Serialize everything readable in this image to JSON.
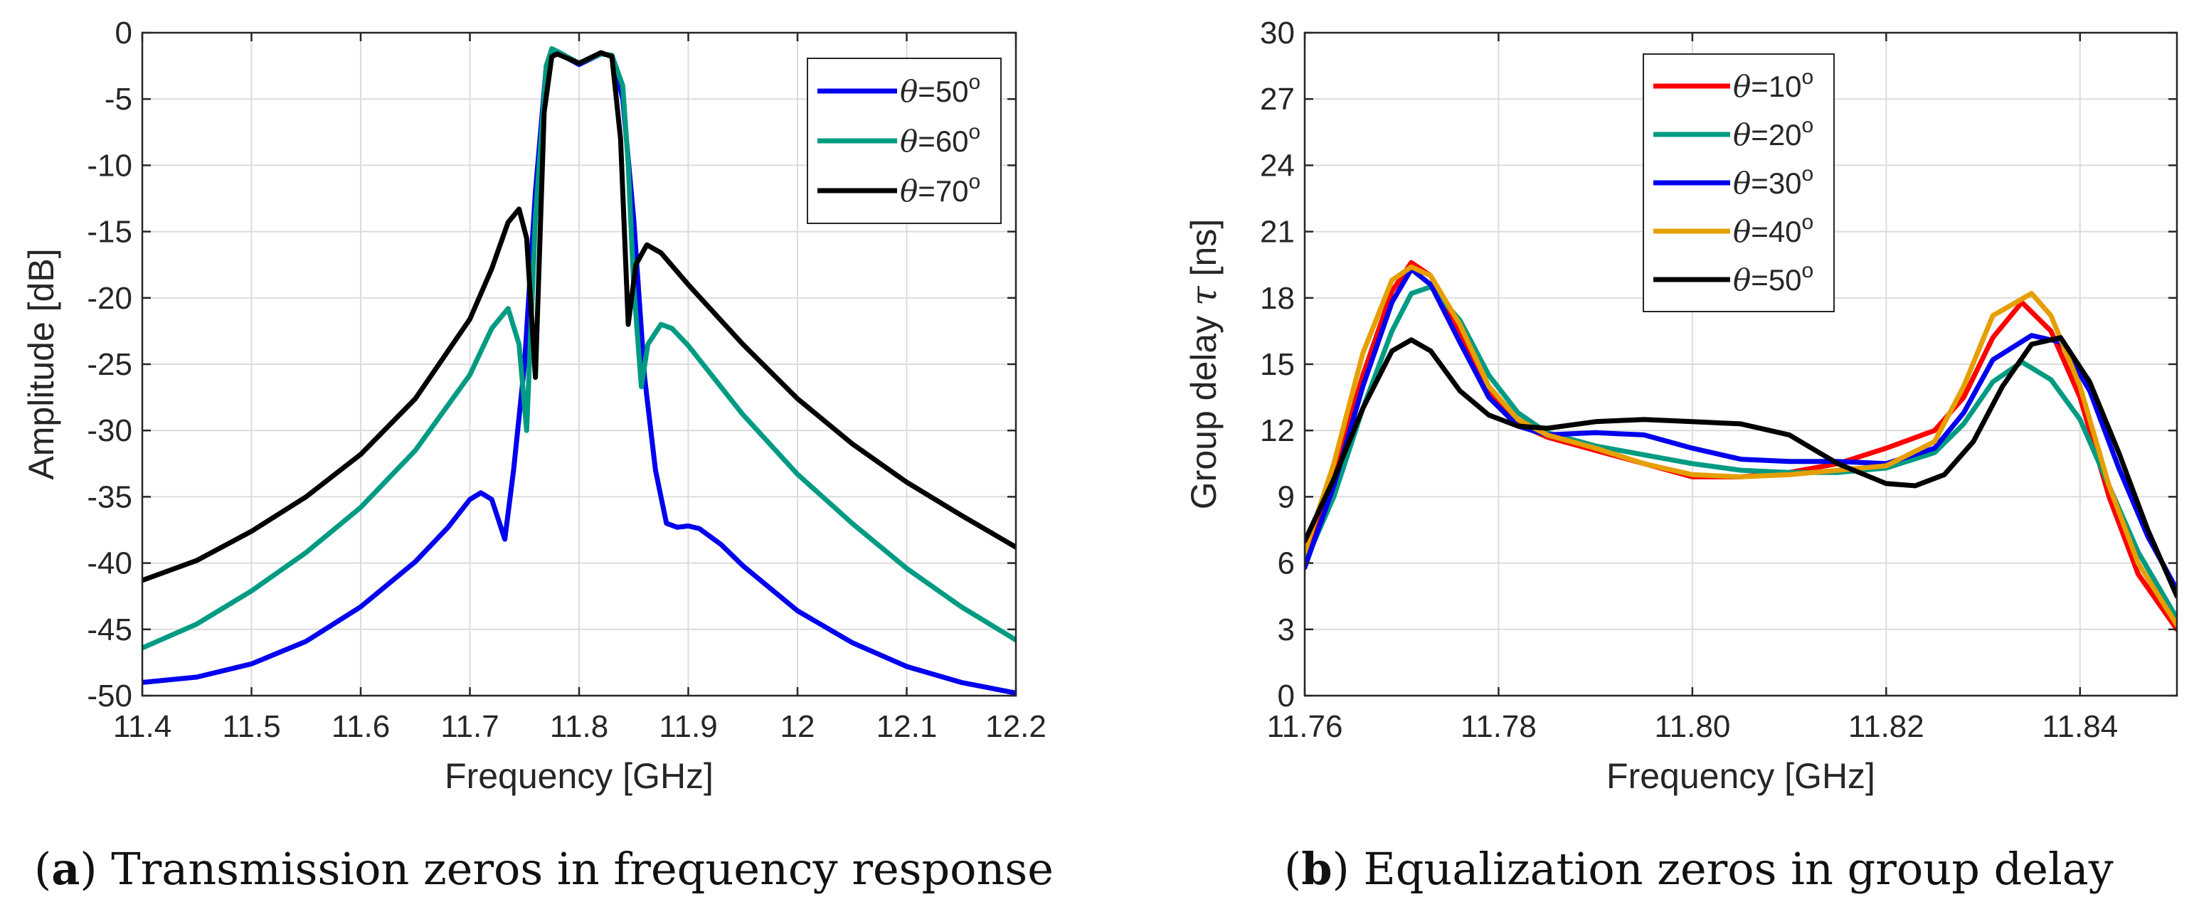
{
  "chart_data": [
    {
      "type": "line",
      "panel": "a",
      "caption_letter": "a",
      "caption_text": "Transmission zeros in frequency response",
      "xlabel": "Frequency [GHz]",
      "ylabel": "Amplitude [dB]",
      "xlim": [
        11.4,
        12.2
      ],
      "ylim": [
        -50,
        0
      ],
      "xticks": [
        11.4,
        11.5,
        11.6,
        11.7,
        11.8,
        11.9,
        12.0,
        12.1,
        12.2
      ],
      "xtick_labels": [
        "11.4",
        "11.5",
        "11.6",
        "11.7",
        "11.8",
        "11.9",
        "12",
        "12.1",
        "12.2"
      ],
      "yticks": [
        0,
        -5,
        -10,
        -15,
        -20,
        -25,
        -30,
        -35,
        -40,
        -45,
        -50
      ],
      "ytick_labels": [
        "0",
        "-5",
        "-10",
        "-15",
        "-20",
        "-25",
        "-30",
        "-35",
        "-40",
        "-45",
        "-50"
      ],
      "grid": true,
      "legend_position": "top-right",
      "series": [
        {
          "name": "θ=50°",
          "legend_symbol": "θ",
          "legend_text": "=50",
          "legend_sup": "o",
          "color": "#0000ee",
          "points": [
            [
              11.4,
              -49
            ],
            [
              11.45,
              -48.6
            ],
            [
              11.5,
              -47.6
            ],
            [
              11.55,
              -45.9
            ],
            [
              11.6,
              -43.3
            ],
            [
              11.65,
              -39.9
            ],
            [
              11.68,
              -37.3
            ],
            [
              11.7,
              -35.2
            ],
            [
              11.71,
              -34.7
            ],
            [
              11.72,
              -35.2
            ],
            [
              11.728,
              -37.2
            ],
            [
              11.732,
              -38.2
            ],
            [
              11.74,
              -33
            ],
            [
              11.75,
              -25
            ],
            [
              11.76,
              -12
            ],
            [
              11.77,
              -2.5
            ],
            [
              11.775,
              -1.3
            ],
            [
              11.78,
              -1.5
            ],
            [
              11.8,
              -2.4
            ],
            [
              11.82,
              -1.6
            ],
            [
              11.83,
              -1.7
            ],
            [
              11.84,
              -5
            ],
            [
              11.85,
              -14
            ],
            [
              11.86,
              -26
            ],
            [
              11.87,
              -33
            ],
            [
              11.88,
              -37
            ],
            [
              11.89,
              -37.3
            ],
            [
              11.9,
              -37.2
            ],
            [
              11.91,
              -37.4
            ],
            [
              11.93,
              -38.6
            ],
            [
              11.95,
              -40.2
            ],
            [
              12.0,
              -43.6
            ],
            [
              12.05,
              -46
            ],
            [
              12.1,
              -47.8
            ],
            [
              12.15,
              -49
            ],
            [
              12.2,
              -49.8
            ]
          ]
        },
        {
          "name": "θ=60°",
          "legend_symbol": "θ",
          "legend_text": "=60",
          "legend_sup": "o",
          "color": "#009b82",
          "points": [
            [
              11.4,
              -46.4
            ],
            [
              11.45,
              -44.6
            ],
            [
              11.5,
              -42.1
            ],
            [
              11.55,
              -39.2
            ],
            [
              11.6,
              -35.8
            ],
            [
              11.65,
              -31.5
            ],
            [
              11.7,
              -25.8
            ],
            [
              11.72,
              -22.3
            ],
            [
              11.735,
              -20.8
            ],
            [
              11.745,
              -23.5
            ],
            [
              11.752,
              -30
            ],
            [
              11.76,
              -14
            ],
            [
              11.77,
              -2.5
            ],
            [
              11.775,
              -1.2
            ],
            [
              11.78,
              -1.4
            ],
            [
              11.8,
              -2.3
            ],
            [
              11.82,
              -1.6
            ],
            [
              11.83,
              -1.7
            ],
            [
              11.84,
              -4
            ],
            [
              11.845,
              -10
            ],
            [
              11.85,
              -19
            ],
            [
              11.857,
              -26.7
            ],
            [
              11.863,
              -23.5
            ],
            [
              11.875,
              -22
            ],
            [
              11.885,
              -22.3
            ],
            [
              11.9,
              -23.6
            ],
            [
              11.95,
              -28.8
            ],
            [
              12.0,
              -33.3
            ],
            [
              12.05,
              -37
            ],
            [
              12.1,
              -40.4
            ],
            [
              12.15,
              -43.3
            ],
            [
              12.2,
              -45.8
            ]
          ]
        },
        {
          "name": "θ=70°",
          "legend_symbol": "θ",
          "legend_text": "=70",
          "legend_sup": "o",
          "color": "#000000",
          "points": [
            [
              11.4,
              -41.3
            ],
            [
              11.45,
              -39.8
            ],
            [
              11.5,
              -37.6
            ],
            [
              11.55,
              -35
            ],
            [
              11.6,
              -31.8
            ],
            [
              11.65,
              -27.6
            ],
            [
              11.7,
              -21.6
            ],
            [
              11.72,
              -17.8
            ],
            [
              11.735,
              -14.3
            ],
            [
              11.745,
              -13.3
            ],
            [
              11.752,
              -15.5
            ],
            [
              11.76,
              -26
            ],
            [
              11.768,
              -6
            ],
            [
              11.775,
              -1.8
            ],
            [
              11.78,
              -1.6
            ],
            [
              11.8,
              -2.3
            ],
            [
              11.82,
              -1.5
            ],
            [
              11.83,
              -1.8
            ],
            [
              11.838,
              -8
            ],
            [
              11.845,
              -22
            ],
            [
              11.852,
              -17.5
            ],
            [
              11.862,
              -16
            ],
            [
              11.875,
              -16.6
            ],
            [
              11.9,
              -19
            ],
            [
              11.95,
              -23.5
            ],
            [
              12.0,
              -27.6
            ],
            [
              12.05,
              -31
            ],
            [
              12.1,
              -33.9
            ],
            [
              12.15,
              -36.4
            ],
            [
              12.2,
              -38.8
            ]
          ]
        }
      ]
    },
    {
      "type": "line",
      "panel": "b",
      "caption_letter": "b",
      "caption_text": "Equalization zeros in group delay",
      "xlabel": "Frequency [GHz]",
      "ylabel_text": "Group delay ",
      "ylabel_symbol": "τ",
      "ylabel_unit": " [ns]",
      "xlim": [
        11.76,
        11.85
      ],
      "ylim": [
        0,
        30
      ],
      "xticks": [
        11.76,
        11.78,
        11.8,
        11.82,
        11.84
      ],
      "xtick_labels": [
        "11.76",
        "11.78",
        "11.80",
        "11.82",
        "11.84"
      ],
      "yticks": [
        0,
        3,
        6,
        9,
        12,
        15,
        18,
        21,
        24,
        27,
        30
      ],
      "ytick_labels": [
        "0",
        "3",
        "6",
        "9",
        "12",
        "15",
        "18",
        "21",
        "24",
        "27",
        "30"
      ],
      "grid": true,
      "legend_position": "top-left",
      "series": [
        {
          "name": "θ=10°",
          "legend_symbol": "θ",
          "legend_text": "=10",
          "legend_sup": "o",
          "color": "#ff0000",
          "points": [
            [
              11.76,
              6.3
            ],
            [
              11.763,
              10
            ],
            [
              11.766,
              14.5
            ],
            [
              11.769,
              18.3
            ],
            [
              11.771,
              19.6
            ],
            [
              11.773,
              19
            ],
            [
              11.776,
              16.5
            ],
            [
              11.779,
              13.8
            ],
            [
              11.782,
              12.3
            ],
            [
              11.785,
              11.7
            ],
            [
              11.79,
              11.1
            ],
            [
              11.795,
              10.5
            ],
            [
              11.8,
              9.9
            ],
            [
              11.805,
              9.9
            ],
            [
              11.81,
              10.1
            ],
            [
              11.815,
              10.5
            ],
            [
              11.82,
              11.2
            ],
            [
              11.825,
              12
            ],
            [
              11.828,
              13.5
            ],
            [
              11.831,
              16.2
            ],
            [
              11.834,
              17.8
            ],
            [
              11.837,
              16.5
            ],
            [
              11.84,
              13.5
            ],
            [
              11.843,
              9
            ],
            [
              11.846,
              5.5
            ],
            [
              11.85,
              3
            ]
          ]
        },
        {
          "name": "θ=20°",
          "legend_symbol": "θ",
          "legend_text": "=20",
          "legend_sup": "o",
          "color": "#009b82",
          "points": [
            [
              11.76,
              6
            ],
            [
              11.763,
              9
            ],
            [
              11.766,
              13
            ],
            [
              11.769,
              16.5
            ],
            [
              11.771,
              18.2
            ],
            [
              11.773,
              18.5
            ],
            [
              11.776,
              17
            ],
            [
              11.779,
              14.5
            ],
            [
              11.782,
              12.8
            ],
            [
              11.785,
              11.9
            ],
            [
              11.79,
              11.3
            ],
            [
              11.795,
              10.9
            ],
            [
              11.8,
              10.5
            ],
            [
              11.805,
              10.2
            ],
            [
              11.81,
              10.1
            ],
            [
              11.815,
              10.1
            ],
            [
              11.82,
              10.3
            ],
            [
              11.825,
              11
            ],
            [
              11.828,
              12.3
            ],
            [
              11.831,
              14.2
            ],
            [
              11.834,
              15.1
            ],
            [
              11.837,
              14.3
            ],
            [
              11.84,
              12.5
            ],
            [
              11.843,
              9.5
            ],
            [
              11.846,
              6.5
            ],
            [
              11.85,
              3.5
            ]
          ]
        },
        {
          "name": "θ=30°",
          "legend_symbol": "θ",
          "legend_text": "=30",
          "legend_sup": "o",
          "color": "#0000ee",
          "points": [
            [
              11.76,
              5.8
            ],
            [
              11.763,
              9.5
            ],
            [
              11.766,
              14
            ],
            [
              11.769,
              17.8
            ],
            [
              11.771,
              19.3
            ],
            [
              11.773,
              18.6
            ],
            [
              11.776,
              16
            ],
            [
              11.779,
              13.5
            ],
            [
              11.782,
              12.2
            ],
            [
              11.785,
              11.8
            ],
            [
              11.79,
              11.9
            ],
            [
              11.795,
              11.8
            ],
            [
              11.8,
              11.2
            ],
            [
              11.805,
              10.7
            ],
            [
              11.81,
              10.6
            ],
            [
              11.815,
              10.6
            ],
            [
              11.82,
              10.5
            ],
            [
              11.825,
              11.2
            ],
            [
              11.828,
              12.8
            ],
            [
              11.831,
              15.2
            ],
            [
              11.835,
              16.3
            ],
            [
              11.838,
              16
            ],
            [
              11.841,
              13.8
            ],
            [
              11.844,
              10.3
            ],
            [
              11.847,
              7.2
            ],
            [
              11.85,
              4.8
            ]
          ]
        },
        {
          "name": "θ=40°",
          "legend_symbol": "θ",
          "legend_text": "=40",
          "legend_sup": "o",
          "color": "#e69f00",
          "points": [
            [
              11.76,
              6.5
            ],
            [
              11.763,
              10.5
            ],
            [
              11.766,
              15.5
            ],
            [
              11.769,
              18.8
            ],
            [
              11.771,
              19.4
            ],
            [
              11.773,
              19
            ],
            [
              11.776,
              16.8
            ],
            [
              11.779,
              14
            ],
            [
              11.782,
              12.5
            ],
            [
              11.785,
              11.8
            ],
            [
              11.79,
              11.2
            ],
            [
              11.795,
              10.5
            ],
            [
              11.8,
              10
            ],
            [
              11.805,
              9.9
            ],
            [
              11.81,
              10
            ],
            [
              11.815,
              10.2
            ],
            [
              11.82,
              10.4
            ],
            [
              11.825,
              11.5
            ],
            [
              11.828,
              14
            ],
            [
              11.831,
              17.2
            ],
            [
              11.835,
              18.2
            ],
            [
              11.837,
              17.2
            ],
            [
              11.84,
              14
            ],
            [
              11.843,
              9.5
            ],
            [
              11.846,
              6
            ],
            [
              11.85,
              3.2
            ]
          ]
        },
        {
          "name": "θ=50°",
          "legend_symbol": "θ",
          "legend_text": "=50",
          "legend_sup": "o",
          "color": "#000000",
          "points": [
            [
              11.76,
              7
            ],
            [
              11.763,
              9.8
            ],
            [
              11.766,
              13
            ],
            [
              11.769,
              15.6
            ],
            [
              11.771,
              16.1
            ],
            [
              11.773,
              15.6
            ],
            [
              11.776,
              13.8
            ],
            [
              11.779,
              12.7
            ],
            [
              11.782,
              12.2
            ],
            [
              11.785,
              12.1
            ],
            [
              11.79,
              12.4
            ],
            [
              11.795,
              12.5
            ],
            [
              11.8,
              12.4
            ],
            [
              11.805,
              12.3
            ],
            [
              11.81,
              11.8
            ],
            [
              11.815,
              10.5
            ],
            [
              11.82,
              9.6
            ],
            [
              11.823,
              9.5
            ],
            [
              11.826,
              10
            ],
            [
              11.829,
              11.5
            ],
            [
              11.832,
              14
            ],
            [
              11.835,
              15.9
            ],
            [
              11.838,
              16.2
            ],
            [
              11.841,
              14.2
            ],
            [
              11.844,
              11
            ],
            [
              11.847,
              7.5
            ],
            [
              11.85,
              4.5
            ]
          ]
        }
      ]
    }
  ]
}
